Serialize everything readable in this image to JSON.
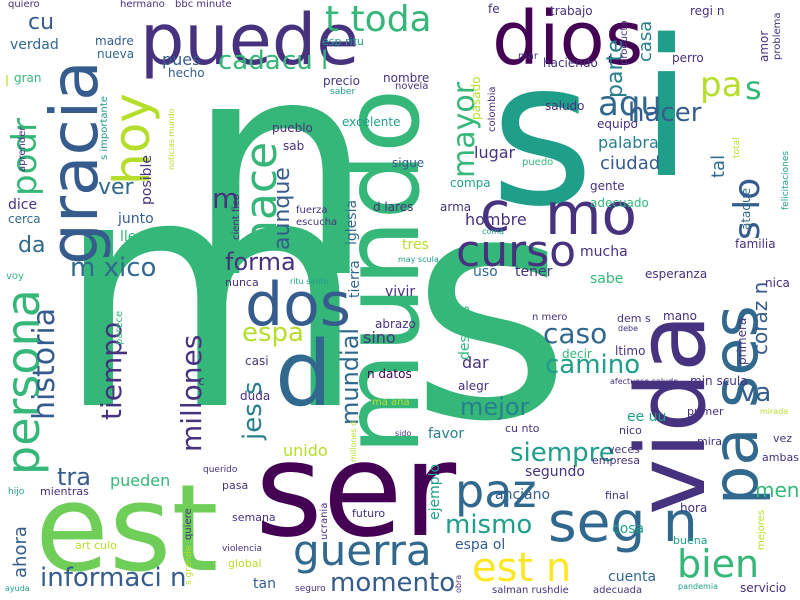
{
  "background": "#ffffff",
  "palette": {
    "dark_purple": "#440154",
    "indigo": "#46327e",
    "blue": "#365c8d",
    "steel_blue": "#31688e",
    "teal_blue": "#277f8e",
    "teal": "#1f9e89",
    "green": "#35b779",
    "light_green": "#6ece58",
    "lime": "#b5de2b",
    "yellow": "#fde725"
  },
  "words": [
    {
      "text": "n",
      "color": "#35b779"
    },
    {
      "text": "m",
      "color": "#35b779"
    },
    {
      "text": "s",
      "color": "#1f9e89"
    },
    {
      "text": "s",
      "color": "#35b779"
    },
    {
      "text": "ser",
      "color": "#440154"
    },
    {
      "text": "est",
      "color": "#6ece58"
    },
    {
      "text": "i",
      "color": "#1f9e89"
    },
    {
      "text": "mundo",
      "color": "#35b779"
    },
    {
      "text": "vida",
      "color": "#46327e"
    },
    {
      "text": "puede",
      "color": "#46327e"
    },
    {
      "text": "gracia",
      "color": "#365c8d"
    },
    {
      "text": "dios",
      "color": "#440154"
    },
    {
      "text": "pa ses",
      "color": "#31688e"
    },
    {
      "text": "d",
      "color": "#31688e"
    },
    {
      "text": "dos",
      "color": "#365c8d"
    },
    {
      "text": "hoy",
      "color": "#b5de2b"
    },
    {
      "text": "persona",
      "color": "#35b779"
    },
    {
      "text": "seg n",
      "color": "#31688e"
    },
    {
      "text": "hace",
      "color": "#35b779"
    },
    {
      "text": "mo",
      "color": "#46327e"
    },
    {
      "text": "c",
      "color": "#46327e"
    },
    {
      "text": "guerra",
      "color": "#31688e"
    },
    {
      "text": "paz",
      "color": "#31688e"
    },
    {
      "text": "curso",
      "color": "#46327e"
    },
    {
      "text": "historia",
      "color": "#365c8d"
    },
    {
      "text": "est n",
      "color": "#fde725"
    },
    {
      "text": "podr",
      "color": "#35b779"
    },
    {
      "text": "t toda",
      "color": "#35b779"
    },
    {
      "text": "s",
      "color": "#35b779"
    },
    {
      "text": "m xico",
      "color": "#31688e"
    },
    {
      "text": "aqu",
      "color": "#31688e"
    },
    {
      "text": "pa",
      "color": "#b5de2b"
    },
    {
      "text": "bien",
      "color": "#35b779"
    },
    {
      "text": "s lo",
      "color": "#365c8d"
    },
    {
      "text": "tiempo",
      "color": "#46327e"
    },
    {
      "text": "millones",
      "color": "#46327e"
    },
    {
      "text": "informaci n",
      "color": "#365c8d"
    },
    {
      "text": "momento",
      "color": "#365c8d"
    },
    {
      "text": "mayor",
      "color": "#35b779"
    },
    {
      "text": "cada",
      "color": "#35b779"
    },
    {
      "text": "cu l",
      "color": "#35b779"
    },
    {
      "text": "espa",
      "color": "#b5de2b"
    },
    {
      "text": "mismo",
      "color": "#1f9e89"
    },
    {
      "text": "siempre",
      "color": "#1f9e89"
    },
    {
      "text": "mejor",
      "color": "#277f8e"
    },
    {
      "text": "hacer",
      "color": "#365c8d"
    },
    {
      "text": "caso",
      "color": "#31688e"
    },
    {
      "text": "camino",
      "color": "#1f9e89"
    },
    {
      "text": "va",
      "color": "#365c8d"
    },
    {
      "text": "forma",
      "color": "#46327e"
    },
    {
      "text": "mundial",
      "color": "#31688e"
    },
    {
      "text": "jes s",
      "color": "#277f8e"
    },
    {
      "text": "tra",
      "color": "#365c8d"
    },
    {
      "text": "ver",
      "color": "#31688e"
    },
    {
      "text": "aunque",
      "color": "#365c8d"
    },
    {
      "text": "cu",
      "color": "#365c8d"
    },
    {
      "text": "m",
      "color": "#46327e"
    },
    {
      "text": "da",
      "color": "#31688e"
    },
    {
      "text": "parte",
      "color": "#277f8e"
    },
    {
      "text": "casa",
      "color": "#277f8e"
    },
    {
      "text": "pues",
      "color": "#365c8d"
    },
    {
      "text": "verdad",
      "color": "#31688e"
    },
    {
      "text": "ahora",
      "color": "#365c8d"
    },
    {
      "text": "pueden",
      "color": "#35b779"
    },
    {
      "text": "meno",
      "color": "#35b779"
    },
    {
      "text": "coraz n",
      "color": "#365c8d"
    },
    {
      "text": "tal",
      "color": "#31688e"
    },
    {
      "text": "unido",
      "color": "#b5de2b"
    },
    {
      "text": "palabra",
      "color": "#277f8e"
    },
    {
      "text": "ciudad",
      "color": "#365c8d"
    },
    {
      "text": "lugar",
      "color": "#46327e"
    },
    {
      "text": "hombre",
      "color": "#46327e"
    },
    {
      "text": "mucha",
      "color": "#46327e"
    },
    {
      "text": "tener",
      "color": "#46327e"
    },
    {
      "text": "vivir",
      "color": "#46327e"
    },
    {
      "text": "sino",
      "color": "#46327e"
    },
    {
      "text": "dar",
      "color": "#46327e"
    },
    {
      "text": "uso",
      "color": "#31688e"
    },
    {
      "text": "tres",
      "color": "#b5de2b"
    },
    {
      "text": "sabe",
      "color": "#35b779"
    },
    {
      "text": "lleva",
      "color": "#35b779"
    },
    {
      "text": "junto",
      "color": "#365c8d"
    },
    {
      "text": "dice",
      "color": "#46327e"
    },
    {
      "text": "posible",
      "color": "#46327e"
    },
    {
      "text": "tierra",
      "color": "#31688e"
    },
    {
      "text": "iglesia",
      "color": "#31688e"
    },
    {
      "text": "despu s",
      "color": "#35b779"
    },
    {
      "text": "favor",
      "color": "#277f8e"
    },
    {
      "text": "ee uu",
      "color": "#1f9e89"
    },
    {
      "text": "espa ol",
      "color": "#365c8d"
    },
    {
      "text": "segundo",
      "color": "#46327e"
    },
    {
      "text": "cosa",
      "color": "#1f9e89"
    },
    {
      "text": "cuenta",
      "color": "#31688e"
    },
    {
      "text": "tan",
      "color": "#365c8d"
    },
    {
      "text": "ejemplo",
      "color": "#1f9e89"
    },
    {
      "text": "anciano",
      "color": "#365c8d"
    },
    {
      "text": "hora",
      "color": "#46327e"
    },
    {
      "text": "nueva",
      "color": "#31688e"
    },
    {
      "text": "mano",
      "color": "#46327e"
    },
    {
      "text": "alegr",
      "color": "#46327e"
    },
    {
      "text": "abrazo",
      "color": "#46327e"
    },
    {
      "text": "n datos",
      "color": "#440154"
    },
    {
      "text": "casi",
      "color": "#46327e"
    },
    {
      "text": "duda",
      "color": "#46327e"
    },
    {
      "text": "gran",
      "color": "#35b779"
    },
    {
      "text": "madre",
      "color": "#365c8d"
    },
    {
      "text": "hecho",
      "color": "#365c8d"
    },
    {
      "text": "precio",
      "color": "#46327e"
    },
    {
      "text": "excelente",
      "color": "#1f9e89"
    },
    {
      "text": "sigue",
      "color": "#365c8d"
    },
    {
      "text": "d lares",
      "color": "#46327e"
    },
    {
      "text": "arma",
      "color": "#46327e"
    },
    {
      "text": "pueblo",
      "color": "#46327e"
    },
    {
      "text": "sab",
      "color": "#46327e"
    },
    {
      "text": "compa",
      "color": "#1f9e89"
    },
    {
      "text": "saludo",
      "color": "#46327e"
    },
    {
      "text": "equipo",
      "color": "#46327e"
    },
    {
      "text": "gente",
      "color": "#46327e"
    },
    {
      "text": "adecuado",
      "color": "#35b779"
    },
    {
      "text": "familia",
      "color": "#46327e"
    },
    {
      "text": "esperanza",
      "color": "#46327e"
    },
    {
      "text": "primera",
      "color": "#46327e"
    },
    {
      "text": "ataque",
      "color": "#31688e"
    },
    {
      "text": "pasado",
      "color": "#b5de2b"
    },
    {
      "text": "colombia",
      "color": "#46327e"
    },
    {
      "text": "nombre",
      "color": "#46327e"
    },
    {
      "text": "novela",
      "color": "#46327e"
    },
    {
      "text": "haciendo",
      "color": "#46327e"
    },
    {
      "text": "mar",
      "color": "#46327e"
    },
    {
      "text": "perro",
      "color": "#46327e"
    },
    {
      "text": "amor",
      "color": "#46327e"
    },
    {
      "text": "problema",
      "color": "#46327e"
    },
    {
      "text": "producto",
      "color": "#46327e"
    },
    {
      "text": "regi n",
      "color": "#46327e"
    },
    {
      "text": "trabajo",
      "color": "#46327e"
    },
    {
      "text": "fe",
      "color": "#46327e"
    },
    {
      "text": "quiero",
      "color": "#46327e"
    },
    {
      "text": "hermano",
      "color": "#46327e"
    },
    {
      "text": "bbc minute",
      "color": "#46327e"
    },
    {
      "text": "esp ritu",
      "color": "#1f9e89"
    },
    {
      "text": "saber",
      "color": "#1f9e89"
    },
    {
      "text": "s importante",
      "color": "#1f9e89"
    },
    {
      "text": "noticias mundo",
      "color": "#b5de2b"
    },
    {
      "text": "aprender",
      "color": "#46327e"
    },
    {
      "text": "cerca",
      "color": "#31688e"
    },
    {
      "text": "fuerza",
      "color": "#46327e"
    },
    {
      "text": "escucha",
      "color": "#46327e"
    },
    {
      "text": "cient fico",
      "color": "#46327e"
    },
    {
      "text": "nunca",
      "color": "#46327e"
    },
    {
      "text": "voy",
      "color": "#35b779"
    },
    {
      "text": "parece",
      "color": "#35b779"
    },
    {
      "text": "ritu santo",
      "color": "#1f9e89"
    },
    {
      "text": "may scula",
      "color": "#1f9e89"
    },
    {
      "text": "coma",
      "color": "#1f9e89"
    },
    {
      "text": "puedo",
      "color": "#35b779"
    },
    {
      "text": "decir",
      "color": "#35b779"
    },
    {
      "text": "ltimo",
      "color": "#46327e"
    },
    {
      "text": "min scula",
      "color": "#46327e"
    },
    {
      "text": "nica",
      "color": "#46327e"
    },
    {
      "text": "dem s",
      "color": "#46327e"
    },
    {
      "text": "n mero",
      "color": "#46327e"
    },
    {
      "text": "debe",
      "color": "#46327e"
    },
    {
      "text": "afectuoso saludo",
      "color": "#46327e"
    },
    {
      "text": "primer",
      "color": "#46327e"
    },
    {
      "text": "nico",
      "color": "#46327e"
    },
    {
      "text": "mira",
      "color": "#46327e"
    },
    {
      "text": "vez",
      "color": "#46327e"
    },
    {
      "text": "ambas",
      "color": "#46327e"
    },
    {
      "text": "mirada",
      "color": "#b5de2b"
    },
    {
      "text": "veces",
      "color": "#46327e"
    },
    {
      "text": "empresa",
      "color": "#46327e"
    },
    {
      "text": "final",
      "color": "#46327e"
    },
    {
      "text": "buena",
      "color": "#1f9e89"
    },
    {
      "text": "mejores",
      "color": "#b5de2b"
    },
    {
      "text": "servicio",
      "color": "#46327e"
    },
    {
      "text": "pandemia",
      "color": "#1f9e89"
    },
    {
      "text": "adecuada",
      "color": "#46327e"
    },
    {
      "text": "salman rushdie",
      "color": "#46327e"
    },
    {
      "text": "seguro",
      "color": "#46327e"
    },
    {
      "text": "obra",
      "color": "#46327e"
    },
    {
      "text": "global",
      "color": "#b5de2b"
    },
    {
      "text": "violencia",
      "color": "#46327e"
    },
    {
      "text": "s grande",
      "color": "#b5de2b"
    },
    {
      "text": "quiere",
      "color": "#46327e"
    },
    {
      "text": "art culo",
      "color": "#b5de2b"
    },
    {
      "text": "mientras",
      "color": "#46327e"
    },
    {
      "text": "hijo",
      "color": "#1f9e89"
    },
    {
      "text": "ayuda",
      "color": "#1f9e89"
    },
    {
      "text": "querido",
      "color": "#46327e"
    },
    {
      "text": "pasa",
      "color": "#46327e"
    },
    {
      "text": "semana",
      "color": "#46327e"
    },
    {
      "text": "ucrania",
      "color": "#46327e"
    },
    {
      "text": "futuro",
      "color": "#46327e"
    },
    {
      "text": "ma ana",
      "color": "#b5de2b"
    },
    {
      "text": "sido",
      "color": "#46327e"
    },
    {
      "text": "cu nto",
      "color": "#46327e"
    },
    {
      "text": "millones d",
      "color": "#b5de2b"
    },
    {
      "text": "total",
      "color": "#b5de2b"
    },
    {
      "text": "felicitaciones",
      "color": "#1f9e89"
    },
    {
      "text": "l",
      "color": "#b5de2b"
    },
    {
      "text": "c",
      "color": "#46327e"
    }
  ]
}
